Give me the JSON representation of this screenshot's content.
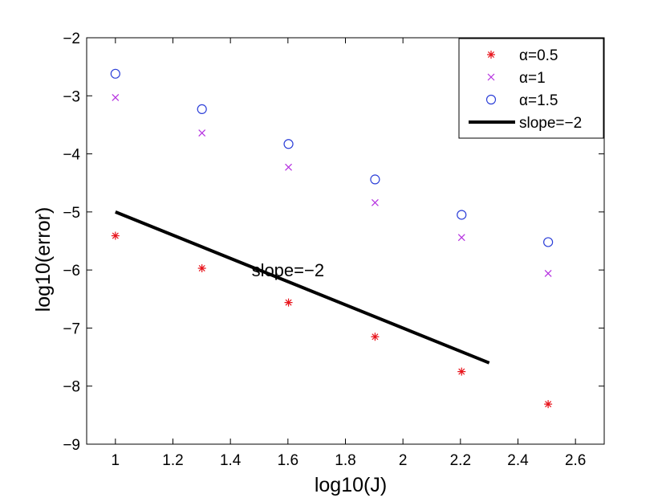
{
  "chart_data": {
    "type": "scatter",
    "title": "",
    "xlabel": "log10(J)",
    "ylabel": "log10(error)",
    "xlim": [
      0.9,
      2.7
    ],
    "ylim": [
      -9,
      -2
    ],
    "xticks": [
      1,
      1.2,
      1.4,
      1.6,
      1.8,
      2,
      2.2,
      2.4,
      2.6
    ],
    "xtick_labels": [
      "1",
      "1.2",
      "1.4",
      "1.6",
      "1.8",
      "2",
      "2.2",
      "2.4",
      "2.6"
    ],
    "yticks": [
      -9,
      -8,
      -7,
      -6,
      -5,
      -4,
      -3,
      -2
    ],
    "ytick_labels": [
      "−9",
      "−8",
      "−7",
      "−6",
      "−5",
      "−4",
      "−3",
      "−2"
    ],
    "grid": false,
    "legend_position": "top-right",
    "series": [
      {
        "name": "α=0.5",
        "marker": "asterisk",
        "color": "#e8141c",
        "x": [
          1.0,
          1.301,
          1.602,
          1.903,
          2.204,
          2.505
        ],
        "y": [
          -5.41,
          -5.97,
          -6.56,
          -7.15,
          -7.75,
          -8.31
        ]
      },
      {
        "name": "α=1",
        "marker": "cross",
        "color": "#b530e0",
        "x": [
          1.0,
          1.301,
          1.602,
          1.903,
          2.204,
          2.505
        ],
        "y": [
          -3.03,
          -3.64,
          -4.23,
          -4.84,
          -5.44,
          -6.06
        ]
      },
      {
        "name": "α=1.5",
        "marker": "circle",
        "color": "#2b3ed8",
        "x": [
          1.0,
          1.301,
          1.602,
          1.903,
          2.204,
          2.505
        ],
        "y": [
          -2.62,
          -3.23,
          -3.83,
          -4.44,
          -5.05,
          -5.52
        ]
      },
      {
        "name": "slope=−2",
        "marker": "line",
        "color": "#000000",
        "x": [
          1.0,
          2.3
        ],
        "y": [
          -5.0,
          -7.6
        ]
      }
    ],
    "annotations": [
      {
        "text": "slope=−2",
        "x": 1.6,
        "y": -6.0
      }
    ]
  }
}
